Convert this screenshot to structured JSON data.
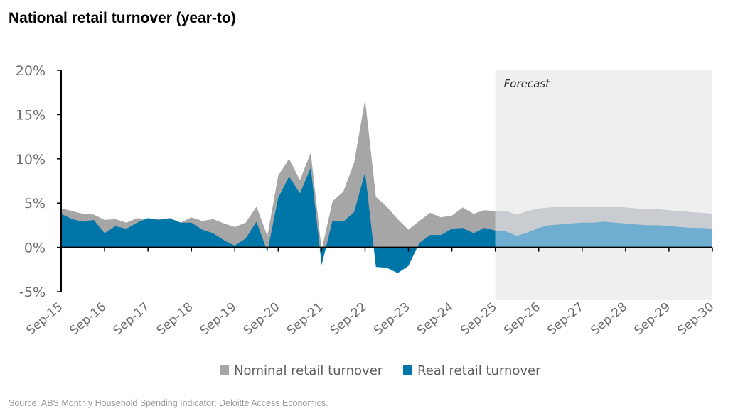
{
  "title": "National retail turnover (year-to)",
  "source": "Source: ABS Monthly Household Spending Indicator; Deloitte Access Economics.",
  "chart_data": {
    "type": "area",
    "title": "National retail turnover (year-to)",
    "xlabel": "",
    "ylabel": "",
    "ylim": [
      -5,
      20
    ],
    "yticks": [
      -5,
      0,
      5,
      10,
      15,
      20
    ],
    "ytick_labels": [
      "-5%",
      "0%",
      "5%",
      "10%",
      "15%",
      "20%"
    ],
    "xlim": [
      2015.75,
      2030.75
    ],
    "xtick_values": [
      2015.75,
      2016.75,
      2017.75,
      2018.75,
      2019.75,
      2020.75,
      2021.75,
      2022.75,
      2023.75,
      2024.75,
      2025.75,
      2026.75,
      2027.75,
      2028.75,
      2029.75,
      2030.75
    ],
    "xtick_labels": [
      "Sep-15",
      "Sep-16",
      "Sep-17",
      "Sep-18",
      "Sep-19",
      "Sep-20",
      "Sep-21",
      "Sep-22",
      "Sep-23",
      "Sep-24",
      "Sep-25",
      "Sep-26",
      "Sep-27",
      "Sep-28",
      "Sep-29",
      "Sep-30"
    ],
    "forecast_start": 2025.75,
    "forecast_label": "Forecast",
    "grid": false,
    "legend_position": "bottom",
    "series": [
      {
        "name": "Nominal retail turnover",
        "color": "#a6a6a6",
        "forecast_color": "#c9ccd0",
        "x": [
          2015.75,
          2016.0,
          2016.25,
          2016.5,
          2016.75,
          2017.0,
          2017.25,
          2017.5,
          2017.75,
          2018.0,
          2018.25,
          2018.5,
          2018.75,
          2019.0,
          2019.25,
          2019.5,
          2019.75,
          2020.0,
          2020.25,
          2020.5,
          2020.75,
          2021.0,
          2021.25,
          2021.5,
          2021.75,
          2022.0,
          2022.25,
          2022.5,
          2022.75,
          2023.0,
          2023.25,
          2023.5,
          2023.75,
          2024.0,
          2024.25,
          2024.5,
          2024.75,
          2025.0,
          2025.25,
          2025.5,
          2025.75,
          2026.0,
          2026.25,
          2026.5,
          2026.75,
          2027.0,
          2027.25,
          2027.5,
          2027.75,
          2028.0,
          2028.25,
          2028.5,
          2028.75,
          2029.0,
          2029.25,
          2029.5,
          2029.75,
          2030.0,
          2030.25,
          2030.5,
          2030.75
        ],
        "values": [
          4.4,
          4.1,
          3.8,
          3.7,
          3.1,
          3.2,
          2.8,
          3.3,
          3.2,
          3.2,
          3.2,
          2.8,
          3.4,
          3.0,
          3.2,
          2.7,
          2.3,
          2.8,
          4.6,
          1.3,
          8.1,
          10.0,
          7.6,
          10.7,
          -0.3,
          5.2,
          6.3,
          9.6,
          16.7,
          5.7,
          4.6,
          3.2,
          2.0,
          3.0,
          3.9,
          3.4,
          3.6,
          4.5,
          3.8,
          4.2,
          4.1,
          4.1,
          3.7,
          4.1,
          4.4,
          4.5,
          4.6,
          4.6,
          4.6,
          4.6,
          4.6,
          4.6,
          4.5,
          4.4,
          4.3,
          4.3,
          4.2,
          4.1,
          4.0,
          3.9,
          3.8
        ]
      },
      {
        "name": "Real retail turnover",
        "color": "#0076a8",
        "forecast_color": "#6faed1",
        "x": [
          2015.75,
          2016.0,
          2016.25,
          2016.5,
          2016.75,
          2017.0,
          2017.25,
          2017.5,
          2017.75,
          2018.0,
          2018.25,
          2018.5,
          2018.75,
          2019.0,
          2019.25,
          2019.5,
          2019.75,
          2020.0,
          2020.25,
          2020.5,
          2020.75,
          2021.0,
          2021.25,
          2021.5,
          2021.75,
          2022.0,
          2022.25,
          2022.5,
          2022.75,
          2023.0,
          2023.25,
          2023.5,
          2023.75,
          2024.0,
          2024.25,
          2024.5,
          2024.75,
          2025.0,
          2025.25,
          2025.5,
          2025.75,
          2026.0,
          2026.25,
          2026.5,
          2026.75,
          2027.0,
          2027.25,
          2027.5,
          2027.75,
          2028.0,
          2028.25,
          2028.5,
          2028.75,
          2029.0,
          2029.25,
          2029.5,
          2029.75,
          2030.0,
          2030.25,
          2030.5,
          2030.75
        ],
        "values": [
          3.8,
          3.2,
          2.9,
          3.1,
          1.6,
          2.4,
          2.1,
          2.8,
          3.3,
          3.1,
          3.3,
          2.8,
          2.8,
          2.0,
          1.6,
          0.8,
          0.2,
          1.0,
          2.9,
          -0.5,
          5.6,
          8.0,
          6.1,
          9.0,
          -2.0,
          3.0,
          2.9,
          4.0,
          8.5,
          -2.2,
          -2.3,
          -2.9,
          -2.1,
          0.5,
          1.4,
          1.4,
          2.1,
          2.2,
          1.6,
          2.2,
          1.9,
          1.8,
          1.3,
          1.7,
          2.2,
          2.5,
          2.6,
          2.7,
          2.8,
          2.8,
          2.9,
          2.8,
          2.7,
          2.6,
          2.5,
          2.5,
          2.4,
          2.3,
          2.2,
          2.2,
          2.1
        ]
      }
    ]
  }
}
